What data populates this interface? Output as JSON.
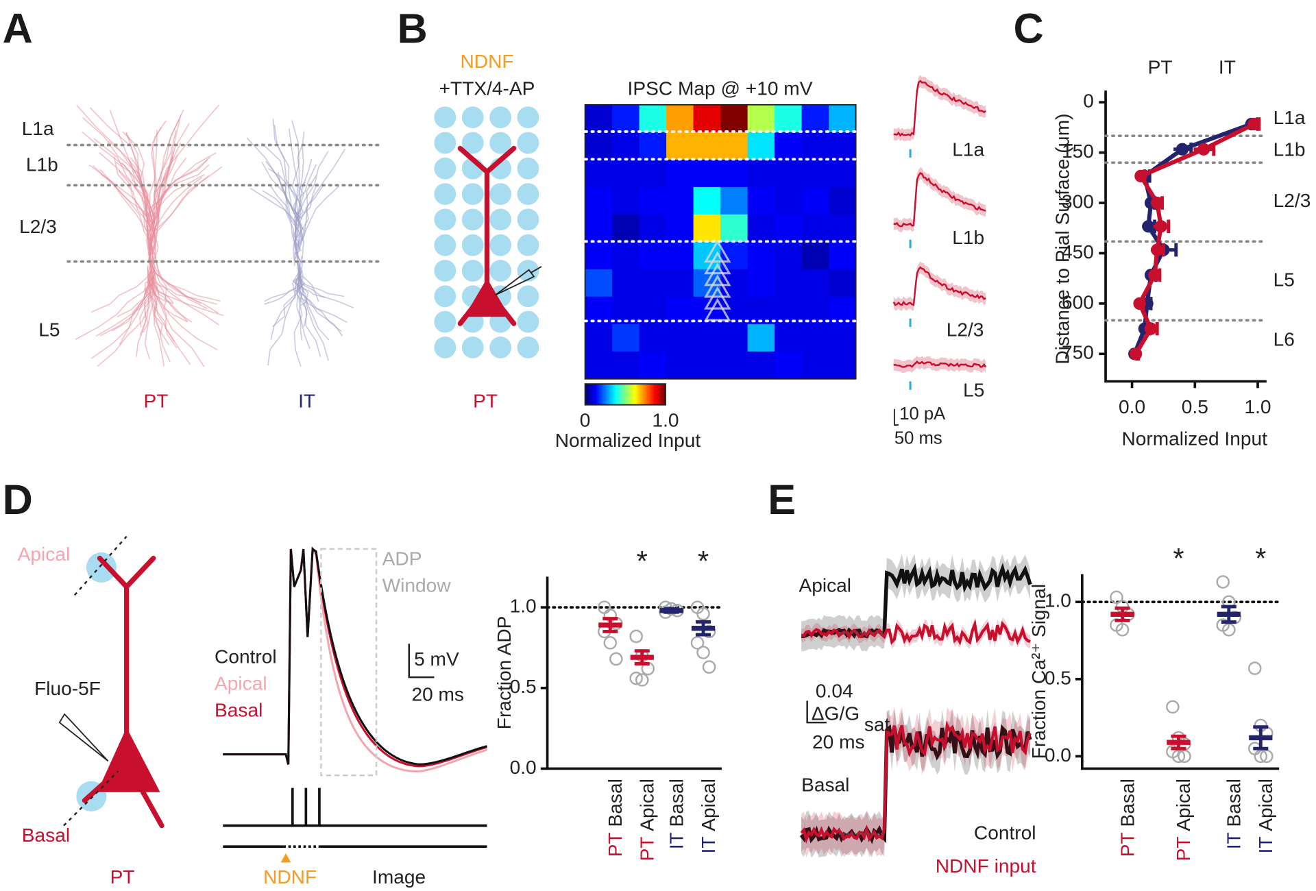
{
  "panel_a": {
    "label": "A",
    "layers": [
      "L1a",
      "L1b",
      "L2/3",
      "L5"
    ],
    "cells": [
      "PT",
      "IT"
    ]
  },
  "panel_b": {
    "label": "B",
    "stim": "NDNF",
    "condition": "+TTX/4-AP",
    "cell": "PT",
    "trace_labels": [
      "L1a",
      "L1b",
      "L2/3",
      "L5"
    ],
    "scale_y": "10 pA",
    "scale_x": "50 ms"
  },
  "panel_c": {
    "label": "C"
  },
  "panel_d": {
    "label": "D",
    "sites": [
      "Apical",
      "Basal"
    ],
    "indicator": "Fluo-5F",
    "cell": "PT",
    "legend": [
      "Control",
      "Apical",
      "Basal"
    ],
    "window": [
      "ADP",
      "Window"
    ],
    "scale_y": "5 mV",
    "scale_x": "20 ms",
    "protocol": [
      "NDNF",
      "Image"
    ]
  },
  "panel_e": {
    "label": "E",
    "sites": [
      "Apical",
      "Basal"
    ],
    "scale_y": [
      "0.04",
      "ΔG/G",
      "sat"
    ],
    "scale_x": "20 ms",
    "legend": [
      "Control",
      "NDNF input"
    ]
  },
  "chart_data": [
    {
      "type": "heatmap",
      "title": "IPSC Map @ +10 mV",
      "colorbar_label": "Normalized Input",
      "clim": [
        0,
        1
      ],
      "colorbar_ticks": [
        0,
        {
          "value": 1,
          "label": "1.0"
        }
      ],
      "values": [
        [
          0.08,
          0.15,
          0.4,
          0.72,
          0.9,
          1.0,
          0.55,
          0.4,
          0.15,
          0.3
        ],
        [
          0.08,
          0.1,
          0.15,
          0.7,
          0.7,
          0.7,
          0.35,
          0.12,
          0.1,
          0.1
        ],
        [
          0.1,
          0.1,
          0.1,
          0.12,
          0.12,
          0.12,
          0.1,
          0.1,
          0.1,
          0.1
        ],
        [
          0.12,
          0.1,
          0.12,
          0.12,
          0.38,
          0.25,
          0.12,
          0.1,
          0.12,
          0.08
        ],
        [
          0.12,
          0.05,
          0.1,
          0.12,
          0.65,
          0.42,
          0.1,
          0.12,
          0.1,
          0.1
        ],
        [
          0.12,
          0.1,
          0.12,
          0.12,
          0.32,
          0.15,
          0.12,
          0.1,
          0.05,
          0.12
        ],
        [
          0.2,
          0.1,
          0.1,
          0.1,
          0.22,
          0.1,
          0.12,
          0.1,
          0.1,
          0.08
        ],
        [
          0.12,
          0.1,
          0.1,
          0.12,
          0.12,
          0.1,
          0.1,
          0.1,
          0.1,
          0.12
        ],
        [
          0.1,
          0.18,
          0.1,
          0.1,
          0.1,
          0.1,
          0.3,
          0.1,
          0.1,
          0.1
        ],
        [
          0.1,
          0.1,
          0.12,
          0.1,
          0.1,
          0.1,
          0.1,
          0.12,
          0.1,
          0.1
        ]
      ]
    },
    {
      "type": "line",
      "xlabel": "Normalized Input",
      "ylabel": "Distance to Pial Surface (μm)",
      "xlim": [
        -0.21,
        1.07
      ],
      "ylim": [
        -35,
        832
      ],
      "y_reversed": true,
      "xticks": [
        {
          "value": 0,
          "label": "0.0"
        },
        {
          "value": 0.5,
          "label": "0.5"
        },
        {
          "value": 1,
          "label": "1.0"
        }
      ],
      "yticks": [
        0,
        150,
        300,
        450,
        600,
        750
      ],
      "y": [
        65,
        140,
        220,
        300,
        370,
        440,
        515,
        600,
        675,
        750
      ],
      "layer_boundaries": [
        100,
        180,
        415,
        650
      ],
      "layers": [
        "L1a",
        "L1b",
        "L2/3",
        "L5",
        "L6"
      ],
      "series": [
        {
          "name": "PT",
          "color": "#c8102e",
          "values": [
            0.97,
            0.57,
            0.07,
            0.2,
            0.23,
            0.2,
            0.18,
            0.06,
            0.15,
            0.03
          ],
          "errors": [
            0.04,
            0.08,
            0.03,
            0.04,
            0.06,
            0.05,
            0.04,
            0.03,
            0.05,
            0.02
          ]
        },
        {
          "name": "IT",
          "color": "#24246e",
          "values": [
            0.95,
            0.4,
            0.1,
            0.15,
            0.13,
            0.25,
            0.15,
            0.12,
            0.1,
            0.02
          ],
          "errors": [
            0.05,
            0.07,
            0.04,
            0.03,
            0.05,
            0.1,
            0.04,
            0.03,
            0.04,
            0.02
          ]
        }
      ]
    },
    {
      "type": "dot",
      "ylabel": "Fraction ADP",
      "ylim": [
        0,
        1.19
      ],
      "yticks": [
        {
          "value": 0,
          "label": "0.0"
        },
        0.5,
        {
          "value": 1,
          "label": "1.0"
        }
      ],
      "reference_line": 1,
      "groups": [
        "PT",
        "PT",
        "IT",
        "IT"
      ],
      "conditions": [
        "Basal",
        "Apical",
        "Basal",
        "Apical"
      ],
      "colors": [
        "#c8102e",
        "#c8102e",
        "#24246e",
        "#24246e"
      ],
      "means": [
        0.89,
        0.69,
        0.98,
        0.87
      ],
      "errors": [
        0.04,
        0.04,
        0.01,
        0.04
      ],
      "points": [
        [
          1.0,
          0.95,
          0.9,
          0.85,
          0.78,
          0.68
        ],
        [
          0.82,
          0.7,
          0.62,
          0.56,
          0.55
        ],
        [
          1.0,
          0.99,
          0.98,
          0.97
        ],
        [
          1.0,
          0.96,
          0.85,
          0.78,
          0.72,
          0.63
        ]
      ],
      "annotations": [
        {
          "text": "*",
          "group": "PT",
          "condition": "Apical"
        },
        {
          "text": "*",
          "group": "IT",
          "condition": "Apical"
        }
      ]
    },
    {
      "type": "dot",
      "ylabel": "Fraction Ca²⁺ Signal",
      "ylim": [
        -0.08,
        1.18
      ],
      "yticks": [
        {
          "value": 0,
          "label": "0.0"
        },
        0.5,
        {
          "value": 1,
          "label": "1.0"
        }
      ],
      "reference_line": 1,
      "groups": [
        "PT",
        "PT",
        "IT",
        "IT"
      ],
      "conditions": [
        "Basal",
        "Apical",
        "Basal",
        "Apical"
      ],
      "colors": [
        "#c8102e",
        "#c8102e",
        "#24246e",
        "#24246e"
      ],
      "means": [
        0.92,
        0.09,
        0.92,
        0.12
      ],
      "errors": [
        0.04,
        0.04,
        0.05,
        0.07
      ],
      "points": [
        [
          1.03,
          0.97,
          0.92,
          0.85,
          0.82
        ],
        [
          0.32,
          0.12,
          0.08,
          0.03,
          0.0,
          0.0
        ],
        [
          1.13,
          1.0,
          0.9,
          0.85,
          0.82
        ],
        [
          0.57,
          0.2,
          0.15,
          0.05,
          0.0,
          0.0
        ]
      ],
      "annotations": [
        {
          "text": "*",
          "group": "PT",
          "condition": "Apical"
        },
        {
          "text": "*",
          "group": "IT",
          "condition": "Apical"
        }
      ]
    }
  ]
}
